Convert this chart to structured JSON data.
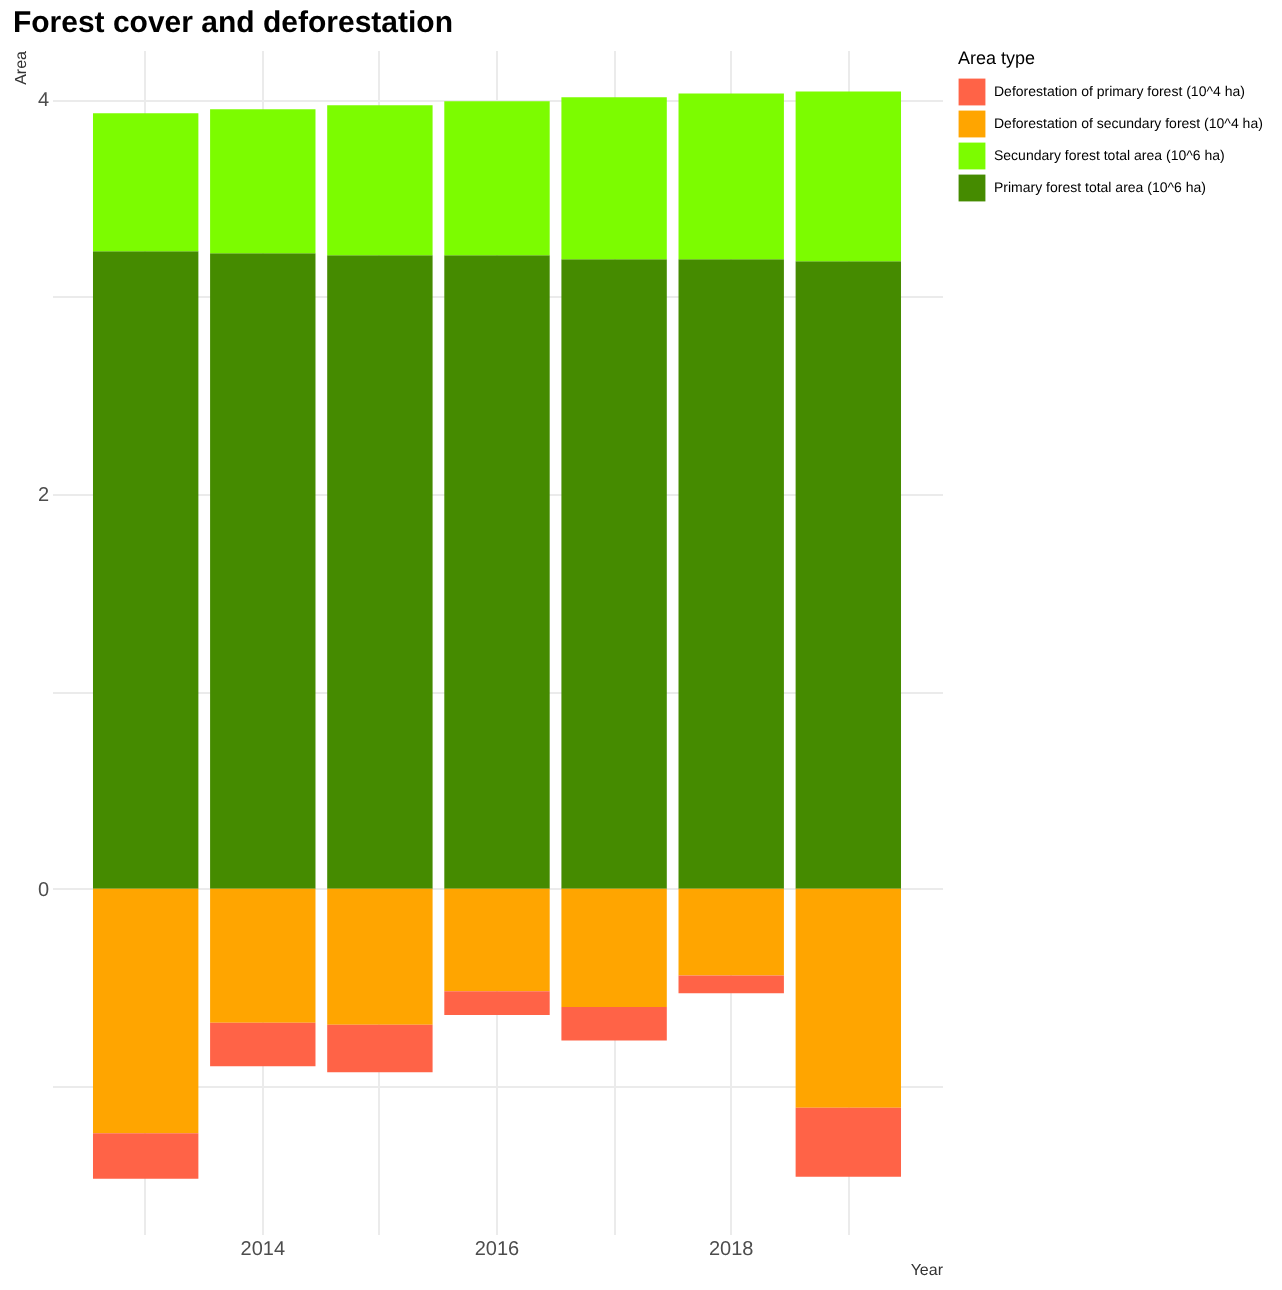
{
  "chart_data": {
    "type": "bar",
    "title": "Forest cover and deforestation",
    "xlabel": "Year",
    "ylabel": "Area",
    "legend_title": "Area type",
    "categories": [
      null,
      "2014",
      null,
      "2016",
      null,
      "2018",
      null
    ],
    "series": [
      {
        "name": "Primary forest total area (10^6 ha)",
        "color": "#458b00",
        "values": [
          3.23,
          3.22,
          3.21,
          3.21,
          3.19,
          3.19,
          3.18
        ]
      },
      {
        "name": "Secundary forest total area  (10^6 ha)",
        "color": "#7cfc00",
        "values": [
          0.7,
          0.73,
          0.76,
          0.78,
          0.82,
          0.84,
          0.86
        ]
      },
      {
        "name": "Deforestation of secundary forest (10^4 ha)",
        "color": "#ffa500",
        "values": [
          -1.24,
          -0.68,
          -0.69,
          -0.52,
          -0.6,
          -0.44,
          -1.11
        ]
      },
      {
        "name": "Deforestation of primary forest (10^4 ha)",
        "color": "#ff6347",
        "values": [
          -0.23,
          -0.22,
          -0.24,
          -0.12,
          -0.17,
          -0.09,
          -0.35
        ]
      }
    ],
    "stacked": true,
    "ylim": [
      -1.75,
      4.25
    ],
    "yticks": [
      {
        "value": -1,
        "label": null
      },
      0,
      {
        "value": 1,
        "label": null
      },
      2,
      {
        "value": 3,
        "label": null
      },
      4
    ],
    "grid": true,
    "legend": "right"
  }
}
